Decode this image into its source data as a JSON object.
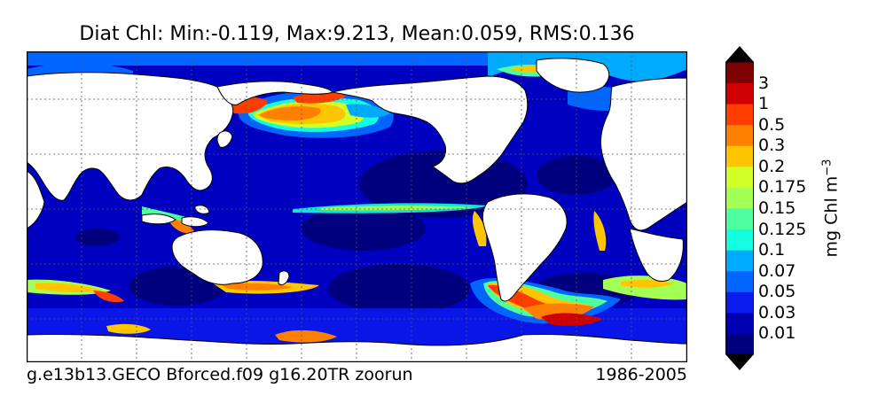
{
  "title": "Diat Chl: Min:-0.119, Max:9.213, Mean:0.059, RMS:0.136",
  "footer": {
    "case": "g.e13b13.GECO Bforced.f09 g16.20TR zoorun",
    "years": "1986-2005"
  },
  "colorbar": {
    "units": "mg Chl m",
    "units_exp": "−3",
    "levels": [
      "0.01",
      "0.03",
      "0.05",
      "0.07",
      "0.1",
      "0.125",
      "0.15",
      "0.175",
      "0.2",
      "0.3",
      "0.5",
      "1",
      "3"
    ],
    "colors": [
      "#00007f",
      "#0000b2",
      "#0b1cf0",
      "#0066ff",
      "#00aaff",
      "#14fdde",
      "#4dff9f",
      "#a4ff54",
      "#d2ff25",
      "#ffc500",
      "#ff7f00",
      "#ff3d00",
      "#d10000",
      "#7f0000"
    ],
    "over_color": "#000000",
    "under_color": "#000000"
  },
  "map_colors": {
    "land": "#ffffff",
    "ocean_base": "#0000c0"
  }
}
